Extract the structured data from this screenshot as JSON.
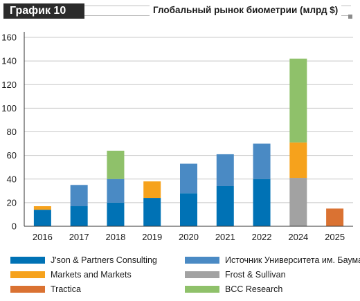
{
  "header": {
    "badge": "График 10",
    "title": "Глобальный рынок биометрии (млрд $)"
  },
  "colors": {
    "jsonpartners": "#0072b5",
    "bauman": "#4a8ac4",
    "marketsandmarkets": "#f6a21c",
    "frost": "#a2a2a2",
    "tractica": "#da7232",
    "bcc": "#8fc16a",
    "grid": "#c8c8c8",
    "axis": "#333333"
  },
  "chart_data": {
    "type": "bar",
    "stacked": true,
    "categories": [
      "2016",
      "2017",
      "2018",
      "2019",
      "2020",
      "2021",
      "2022",
      "2024",
      "2025"
    ],
    "ylim": [
      0,
      160
    ],
    "yticks": [
      "0",
      "20",
      "40",
      "60",
      "80",
      "100",
      "120",
      "140",
      "160"
    ],
    "grid": true,
    "legend_position": "bottom",
    "series": [
      {
        "key": "jsonpartners",
        "name": "J'son & Partners Consulting",
        "values": [
          14,
          17,
          20,
          24,
          28,
          34,
          40,
          0,
          0
        ]
      },
      {
        "key": "bauman",
        "name": "Источник Университета им. Баумана",
        "values": [
          0,
          18,
          20,
          0,
          25,
          27,
          30,
          0,
          0
        ]
      },
      {
        "key": "marketsandmarkets",
        "name": "Markets and Markets",
        "values": [
          3,
          0,
          0,
          14,
          0,
          0,
          0,
          30,
          0
        ]
      },
      {
        "key": "frost",
        "name": "Frost & Sullivan",
        "values": [
          0,
          0,
          0,
          0,
          0,
          0,
          0,
          41,
          0
        ]
      },
      {
        "key": "tractica",
        "name": "Tractica",
        "values": [
          0,
          0,
          0,
          0,
          0,
          0,
          0,
          0,
          15
        ]
      },
      {
        "key": "bcc",
        "name": "BCC Research",
        "values": [
          0,
          0,
          24,
          0,
          0,
          0,
          0,
          71,
          0
        ]
      }
    ],
    "stack_order_2019": [
      "jsonpartners",
      "marketsandmarkets",
      "bauman"
    ]
  },
  "legend": [
    {
      "key": "jsonpartners",
      "label": "J'son & Partners Consulting"
    },
    {
      "key": "bauman",
      "label": "Источник Университета им. Баумана"
    },
    {
      "key": "marketsandmarkets",
      "label": "Markets and Markets"
    },
    {
      "key": "frost",
      "label": "Frost & Sullivan"
    },
    {
      "key": "tractica",
      "label": "Tractica"
    },
    {
      "key": "bcc",
      "label": "BCC Research"
    }
  ]
}
